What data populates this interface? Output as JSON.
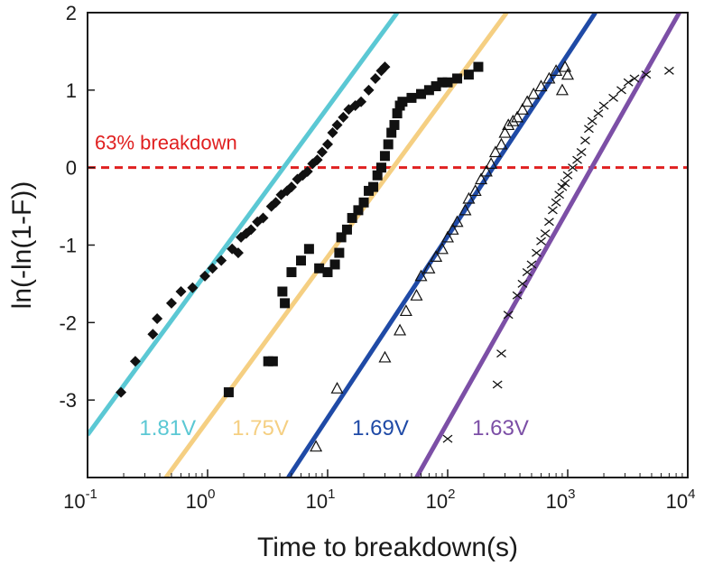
{
  "chart_data": {
    "type": "scatter",
    "title": "",
    "xlabel": "Time to breakdown(s)",
    "ylabel": "ln(-ln(1-F))",
    "xscale": "log",
    "xlim": [
      0.1,
      10000
    ],
    "ylim": [
      -4,
      2
    ],
    "xticks": [
      {
        "value": 0.1,
        "base": "10",
        "exp": "-1"
      },
      {
        "value": 1,
        "base": "10",
        "exp": "0"
      },
      {
        "value": 10,
        "base": "10",
        "exp": "1"
      },
      {
        "value": 100,
        "base": "10",
        "exp": "2"
      },
      {
        "value": 1000,
        "base": "10",
        "exp": "3"
      },
      {
        "value": 10000,
        "base": "10",
        "exp": "4"
      }
    ],
    "yticks": [
      {
        "value": 2,
        "label": "2"
      },
      {
        "value": 1,
        "label": "1"
      },
      {
        "value": 0,
        "label": "0"
      },
      {
        "value": -1,
        "label": "-1"
      },
      {
        "value": -2,
        "label": "-2"
      },
      {
        "value": -3,
        "label": "-3"
      }
    ],
    "grid": false,
    "reference_line": {
      "y": 0,
      "label": "63% breakdown",
      "color": "#e02020"
    },
    "series": [
      {
        "name": "1.81V",
        "color": "#5bc8d4",
        "marker": "diamond",
        "fit": {
          "x1": 0.1,
          "y1": -3.45,
          "x2": 38,
          "y2": 2.0
        },
        "points": [
          [
            0.19,
            -2.9
          ],
          [
            0.25,
            -2.5
          ],
          [
            0.35,
            -2.15
          ],
          [
            0.38,
            -1.95
          ],
          [
            0.5,
            -1.75
          ],
          [
            0.6,
            -1.6
          ],
          [
            0.75,
            -1.55
          ],
          [
            0.95,
            -1.4
          ],
          [
            1.1,
            -1.3
          ],
          [
            1.3,
            -1.2
          ],
          [
            1.6,
            -1.05
          ],
          [
            1.9,
            -0.9
          ],
          [
            2.1,
            -0.85
          ],
          [
            2.3,
            -0.8
          ],
          [
            1.8,
            -1.1
          ],
          [
            2.6,
            -0.7
          ],
          [
            2.9,
            -0.65
          ],
          [
            3.4,
            -0.5
          ],
          [
            3.7,
            -0.45
          ],
          [
            4.1,
            -0.35
          ],
          [
            4.6,
            -0.3
          ],
          [
            5.0,
            -0.25
          ],
          [
            5.6,
            -0.15
          ],
          [
            6.2,
            -0.1
          ],
          [
            6.8,
            -0.05
          ],
          [
            7.5,
            0.05
          ],
          [
            8.2,
            0.1
          ],
          [
            9.0,
            0.2
          ],
          [
            10.0,
            0.3
          ],
          [
            11.0,
            0.45
          ],
          [
            12.0,
            0.55
          ],
          [
            13.5,
            0.65
          ],
          [
            15.0,
            0.75
          ],
          [
            17.0,
            0.8
          ],
          [
            19.0,
            0.85
          ],
          [
            22.0,
            1.0
          ],
          [
            25.0,
            1.15
          ],
          [
            28.0,
            1.25
          ],
          [
            30.0,
            1.3
          ]
        ]
      },
      {
        "name": "1.75V",
        "color": "#f5cf82",
        "marker": "square",
        "fit": {
          "x1": 0.45,
          "y1": -4.0,
          "x2": 310,
          "y2": 2.0
        },
        "points": [
          [
            1.5,
            -2.9
          ],
          [
            3.2,
            -2.5
          ],
          [
            3.5,
            -2.5
          ],
          [
            4.2,
            -1.6
          ],
          [
            4.4,
            -1.75
          ],
          [
            5.0,
            -1.35
          ],
          [
            6.0,
            -1.2
          ],
          [
            7.0,
            -1.05
          ],
          [
            8.5,
            -1.3
          ],
          [
            10.0,
            -1.35
          ],
          [
            11.5,
            -1.25
          ],
          [
            12.5,
            -1.1
          ],
          [
            13.0,
            -0.9
          ],
          [
            14.5,
            -0.8
          ],
          [
            16.0,
            -0.65
          ],
          [
            18.0,
            -0.55
          ],
          [
            20.0,
            -0.45
          ],
          [
            22.0,
            -0.3
          ],
          [
            24.0,
            -0.25
          ],
          [
            26.0,
            -0.1
          ],
          [
            28.0,
            0.0
          ],
          [
            30.0,
            0.15
          ],
          [
            32.0,
            0.3
          ],
          [
            34.0,
            0.45
          ],
          [
            36.0,
            0.55
          ],
          [
            38.0,
            0.7
          ],
          [
            40.0,
            0.8
          ],
          [
            42.0,
            0.85
          ],
          [
            50.0,
            0.9
          ],
          [
            60.0,
            0.95
          ],
          [
            70.0,
            1.0
          ],
          [
            80.0,
            1.05
          ],
          [
            90.0,
            1.1
          ],
          [
            100.0,
            1.1
          ],
          [
            120.0,
            1.15
          ],
          [
            150.0,
            1.2
          ],
          [
            180.0,
            1.3
          ]
        ]
      },
      {
        "name": "1.69V",
        "color": "#1f4aa6",
        "marker": "triangle",
        "fit": {
          "x1": 4.7,
          "y1": -4.0,
          "x2": 1700,
          "y2": 2.0
        },
        "points": [
          [
            8.0,
            -3.6
          ],
          [
            12.0,
            -2.85
          ],
          [
            30.0,
            -2.45
          ],
          [
            40.0,
            -2.1
          ],
          [
            45.0,
            -1.85
          ],
          [
            55.0,
            -1.65
          ],
          [
            60.0,
            -1.4
          ],
          [
            70.0,
            -1.3
          ],
          [
            80.0,
            -1.15
          ],
          [
            90.0,
            -1.05
          ],
          [
            100.0,
            -0.9
          ],
          [
            110.0,
            -0.8
          ],
          [
            120.0,
            -0.7
          ],
          [
            140.0,
            -0.55
          ],
          [
            150.0,
            -0.4
          ],
          [
            170.0,
            -0.3
          ],
          [
            190.0,
            -0.15
          ],
          [
            210.0,
            -0.05
          ],
          [
            230.0,
            0.05
          ],
          [
            250.0,
            0.2
          ],
          [
            280.0,
            0.3
          ],
          [
            300.0,
            0.45
          ],
          [
            320.0,
            0.55
          ],
          [
            350.0,
            0.6
          ],
          [
            380.0,
            0.65
          ],
          [
            420.0,
            0.75
          ],
          [
            460.0,
            0.85
          ],
          [
            520.0,
            0.95
          ],
          [
            600.0,
            1.05
          ],
          [
            700.0,
            1.15
          ],
          [
            800.0,
            1.25
          ],
          [
            900.0,
            1.0
          ],
          [
            950.0,
            1.3
          ],
          [
            1000.0,
            1.2
          ]
        ]
      },
      {
        "name": "1.63V",
        "color": "#7c4fa6",
        "marker": "cross",
        "fit": {
          "x1": 55,
          "y1": -4.0,
          "x2": 8500,
          "y2": 2.0
        },
        "points": [
          [
            100.0,
            -3.5
          ],
          [
            260.0,
            -2.8
          ],
          [
            280.0,
            -2.4
          ],
          [
            320.0,
            -1.9
          ],
          [
            380.0,
            -1.65
          ],
          [
            420.0,
            -1.5
          ],
          [
            460.0,
            -1.35
          ],
          [
            500.0,
            -1.25
          ],
          [
            550.0,
            -1.1
          ],
          [
            600.0,
            -0.95
          ],
          [
            650.0,
            -0.85
          ],
          [
            700.0,
            -0.7
          ],
          [
            750.0,
            -0.55
          ],
          [
            800.0,
            -0.45
          ],
          [
            850.0,
            -0.35
          ],
          [
            900.0,
            -0.25
          ],
          [
            950.0,
            -0.2
          ],
          [
            1000.0,
            -0.1
          ],
          [
            1100.0,
            0.0
          ],
          [
            1200.0,
            0.1
          ],
          [
            1300.0,
            0.2
          ],
          [
            1400.0,
            0.35
          ],
          [
            1500.0,
            0.5
          ],
          [
            1600.0,
            0.6
          ],
          [
            1800.0,
            0.7
          ],
          [
            2000.0,
            0.8
          ],
          [
            2400.0,
            0.9
          ],
          [
            2800.0,
            1.0
          ],
          [
            3200.0,
            1.1
          ],
          [
            3600.0,
            1.15
          ],
          [
            4500.0,
            1.2
          ],
          [
            7000.0,
            1.25
          ]
        ]
      }
    ]
  }
}
